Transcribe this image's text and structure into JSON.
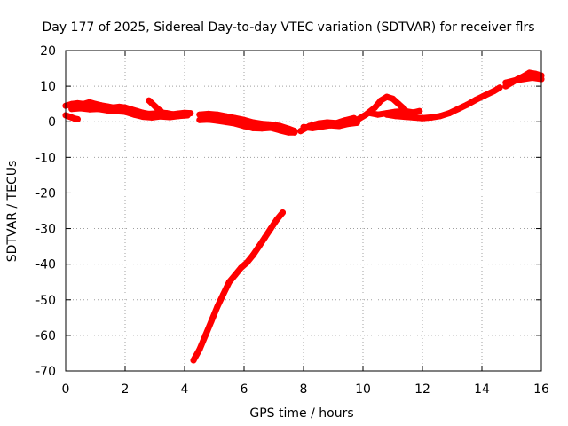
{
  "chart_data": {
    "type": "scatter",
    "title": "Day 177 of 2025, Sidereal Day-to-day VTEC variation (SDTVAR) for receiver flrs",
    "xlabel": "GPS time / hours",
    "ylabel": "SDTVAR / TECUs",
    "xlim": [
      0,
      16
    ],
    "ylim": [
      -70,
      20
    ],
    "x_ticks": [
      0,
      2,
      4,
      6,
      8,
      10,
      12,
      14,
      16
    ],
    "y_ticks": [
      -70,
      -60,
      -50,
      -40,
      -30,
      -20,
      -10,
      0,
      10,
      20
    ],
    "grid": true,
    "marker_color": "#ff0000",
    "series": [
      {
        "segments": [
          [
            [
              0.0,
              4.5
            ],
            [
              0.2,
              5.0
            ],
            [
              0.4,
              5.2
            ],
            [
              0.6,
              5.0
            ],
            [
              0.8,
              5.5
            ],
            [
              1.0,
              5.0
            ],
            [
              1.2,
              4.6
            ],
            [
              1.4,
              4.3
            ],
            [
              1.6,
              4.0
            ],
            [
              1.8,
              4.2
            ],
            [
              2.0,
              4.0
            ],
            [
              2.2,
              3.5
            ],
            [
              2.4,
              3.0
            ],
            [
              2.6,
              2.5
            ],
            [
              2.8,
              2.2
            ],
            [
              3.0,
              2.3
            ],
            [
              3.2,
              2.6
            ],
            [
              3.4,
              2.4
            ],
            [
              3.6,
              2.1
            ],
            [
              3.8,
              2.3
            ],
            [
              4.0,
              2.5
            ],
            [
              4.2,
              2.4
            ]
          ],
          [
            [
              0.0,
              1.8
            ],
            [
              0.1,
              1.5
            ],
            [
              0.2,
              1.2
            ],
            [
              0.3,
              0.9
            ],
            [
              0.4,
              0.7
            ]
          ],
          [
            [
              0.2,
              3.6
            ],
            [
              0.5,
              3.8
            ],
            [
              0.8,
              3.5
            ],
            [
              1.1,
              3.6
            ],
            [
              1.4,
              3.2
            ],
            [
              1.7,
              3.0
            ],
            [
              2.0,
              2.8
            ],
            [
              2.3,
              2.0
            ],
            [
              2.6,
              1.4
            ],
            [
              2.9,
              1.2
            ],
            [
              3.2,
              1.5
            ],
            [
              3.5,
              1.3
            ],
            [
              3.8,
              1.6
            ],
            [
              4.1,
              1.8
            ]
          ],
          [
            [
              2.8,
              6.0
            ],
            [
              2.9,
              5.2
            ],
            [
              3.0,
              4.4
            ],
            [
              3.1,
              3.6
            ],
            [
              3.2,
              3.0
            ]
          ],
          [
            [
              4.5,
              2.0
            ],
            [
              4.8,
              2.2
            ],
            [
              5.1,
              2.0
            ],
            [
              5.4,
              1.5
            ],
            [
              5.7,
              1.0
            ],
            [
              6.0,
              0.5
            ],
            [
              6.3,
              -0.2
            ],
            [
              6.6,
              -0.6
            ],
            [
              6.9,
              -0.8
            ],
            [
              7.2,
              -1.2
            ],
            [
              7.5,
              -2.0
            ],
            [
              7.7,
              -2.6
            ]
          ],
          [
            [
              4.5,
              0.5
            ],
            [
              4.8,
              0.6
            ],
            [
              5.1,
              0.3
            ],
            [
              5.4,
              -0.1
            ],
            [
              5.7,
              -0.5
            ],
            [
              6.0,
              -1.2
            ],
            [
              6.3,
              -1.8
            ],
            [
              6.6,
              -1.9
            ],
            [
              6.9,
              -1.7
            ],
            [
              7.2,
              -2.4
            ],
            [
              7.5,
              -3.0
            ],
            [
              7.7,
              -3.0
            ]
          ],
          [
            [
              7.9,
              -2.6
            ],
            [
              8.2,
              -1.2
            ],
            [
              8.5,
              -0.5
            ],
            [
              8.8,
              -0.2
            ],
            [
              9.1,
              -0.4
            ],
            [
              9.4,
              0.4
            ],
            [
              9.7,
              1.0
            ]
          ],
          [
            [
              8.0,
              -1.5
            ],
            [
              8.3,
              -1.8
            ],
            [
              8.6,
              -1.4
            ],
            [
              8.9,
              -1.0
            ],
            [
              9.2,
              -1.2
            ],
            [
              9.5,
              -0.6
            ],
            [
              9.8,
              -0.3
            ]
          ],
          [
            [
              9.8,
              0.5
            ],
            [
              10.1,
              2.0
            ],
            [
              10.4,
              4.0
            ],
            [
              10.6,
              6.0
            ],
            [
              10.8,
              7.0
            ],
            [
              11.0,
              6.5
            ],
            [
              11.2,
              5.0
            ],
            [
              11.4,
              3.5
            ]
          ],
          [
            [
              10.2,
              2.5
            ],
            [
              10.5,
              2.0
            ],
            [
              10.8,
              2.4
            ],
            [
              11.1,
              2.8
            ],
            [
              11.4,
              3.0
            ],
            [
              11.7,
              2.6
            ],
            [
              11.9,
              3.0
            ]
          ],
          [
            [
              10.8,
              2.0
            ],
            [
              11.1,
              1.6
            ],
            [
              11.4,
              1.4
            ],
            [
              11.7,
              1.2
            ],
            [
              12.0,
              1.0
            ],
            [
              12.3,
              1.2
            ],
            [
              12.6,
              1.6
            ],
            [
              12.9,
              2.4
            ],
            [
              13.2,
              3.6
            ],
            [
              13.5,
              4.8
            ],
            [
              13.8,
              6.2
            ],
            [
              14.1,
              7.4
            ],
            [
              14.4,
              8.6
            ],
            [
              14.6,
              9.6
            ]
          ],
          [
            [
              14.8,
              10.0
            ],
            [
              15.0,
              11.0
            ],
            [
              15.2,
              12.0
            ],
            [
              15.4,
              12.8
            ],
            [
              15.6,
              13.8
            ],
            [
              15.8,
              13.5
            ],
            [
              16.0,
              13.0
            ]
          ],
          [
            [
              14.8,
              11.0
            ],
            [
              15.1,
              11.6
            ],
            [
              15.4,
              12.0
            ],
            [
              15.7,
              12.4
            ],
            [
              16.0,
              12.0
            ]
          ],
          [
            [
              4.3,
              -67.0
            ],
            [
              4.5,
              -64.0
            ],
            [
              4.7,
              -60.0
            ],
            [
              4.9,
              -56.0
            ],
            [
              5.1,
              -52.0
            ],
            [
              5.3,
              -48.5
            ],
            [
              5.5,
              -45.0
            ],
            [
              5.7,
              -43.0
            ],
            [
              5.9,
              -41.0
            ],
            [
              6.1,
              -39.5
            ],
            [
              6.3,
              -37.5
            ],
            [
              6.5,
              -35.0
            ],
            [
              6.7,
              -32.5
            ],
            [
              6.9,
              -30.0
            ],
            [
              7.1,
              -27.5
            ],
            [
              7.3,
              -25.5
            ]
          ]
        ]
      }
    ]
  }
}
